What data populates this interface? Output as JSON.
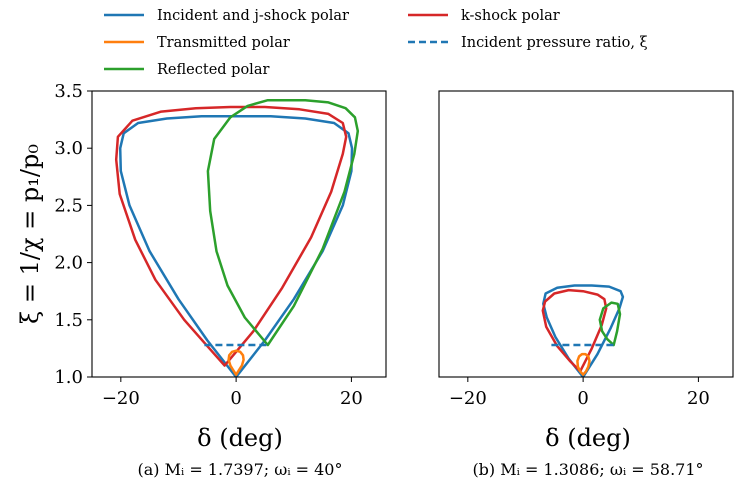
{
  "legend": [
    {
      "label": "Incident and j-shock polar",
      "color": "#1f77b4",
      "dash": false
    },
    {
      "label": "Transmitted polar",
      "color": "#ff7f0e",
      "dash": false
    },
    {
      "label": "Reflected polar",
      "color": "#2ca02c",
      "dash": false
    },
    {
      "label": "k-shock polar",
      "color": "#d62728",
      "dash": false
    },
    {
      "label": "Incident pressure ratio, ξ",
      "color": "#1f77b4",
      "dash": true
    }
  ],
  "chart_data": [
    {
      "type": "line",
      "caption": "(a) Mᵢ = 1.7397;    ωᵢ = 40°",
      "xlabel": "δ (deg)",
      "ylabel": "ξ = 1/χ = p₁/p₀",
      "xlim": [
        -25,
        26
      ],
      "ylim": [
        1.0,
        3.5
      ],
      "xticks": [
        -20,
        0,
        20
      ],
      "xtick_labels": [
        "−20",
        "0",
        "20"
      ],
      "yticks": [
        1.0,
        1.5,
        2.0,
        2.5,
        3.0,
        3.5
      ],
      "ytick_labels": [
        "1.0",
        "1.5",
        "2.0",
        "2.5",
        "3.0",
        "3.5"
      ],
      "series": [
        {
          "name": "Incident and j-shock polar",
          "color": "#1f77b4",
          "x": [
            0,
            5,
            10,
            15,
            18.5,
            20,
            20.1,
            19.5,
            17,
            12,
            6,
            0,
            -6,
            -12,
            -17,
            -19.5,
            -20.1,
            -20,
            -18.5,
            -15,
            -10,
            -5,
            0
          ],
          "y": [
            1.0,
            1.32,
            1.68,
            2.1,
            2.5,
            2.8,
            3.0,
            3.13,
            3.22,
            3.26,
            3.28,
            3.28,
            3.28,
            3.26,
            3.22,
            3.13,
            3.0,
            2.8,
            2.5,
            2.1,
            1.68,
            1.32,
            1.0
          ]
        },
        {
          "name": "k-shock polar",
          "color": "#d62728",
          "x": [
            -2,
            3,
            8,
            13,
            16.5,
            18.5,
            19.1,
            18.5,
            16,
            11,
            5,
            -1,
            -7,
            -13,
            -18,
            -20.5,
            -20.8,
            -20.2,
            -17.5,
            -14,
            -9,
            -5,
            -2
          ],
          "y": [
            1.1,
            1.4,
            1.78,
            2.22,
            2.62,
            2.95,
            3.1,
            3.22,
            3.3,
            3.34,
            3.36,
            3.36,
            3.35,
            3.32,
            3.24,
            3.1,
            2.9,
            2.6,
            2.2,
            1.85,
            1.5,
            1.27,
            1.1
          ]
        },
        {
          "name": "Reflected polar",
          "color": "#2ca02c",
          "x": [
            5.5,
            10,
            15,
            18.8,
            20.5,
            21.1,
            20.6,
            19,
            16,
            12,
            8,
            5.5,
            2,
            -1,
            -3.8,
            -4.9,
            -4.5,
            -3.4,
            -1.5,
            1.5,
            5.5
          ],
          "y": [
            1.28,
            1.62,
            2.12,
            2.62,
            2.95,
            3.15,
            3.27,
            3.35,
            3.4,
            3.42,
            3.42,
            3.42,
            3.37,
            3.27,
            3.08,
            2.8,
            2.45,
            2.1,
            1.8,
            1.52,
            1.28
          ]
        },
        {
          "name": "Transmitted polar",
          "color": "#ff7f0e",
          "x": [
            0,
            0.5,
            1.0,
            1.3,
            1.2,
            0.7,
            0,
            -0.7,
            -1.2,
            -1.3,
            -1.0,
            -0.5,
            0
          ],
          "y": [
            1.02,
            1.06,
            1.1,
            1.15,
            1.19,
            1.22,
            1.23,
            1.22,
            1.19,
            1.15,
            1.1,
            1.06,
            1.02
          ]
        },
        {
          "name": "Incident pressure ratio, ξ",
          "color": "#1f77b4",
          "dash": true,
          "x": [
            -5.5,
            5.5
          ],
          "y": [
            1.28,
            1.28
          ]
        }
      ]
    },
    {
      "type": "line",
      "caption": "(b) Mᵢ = 1.3086;    ωᵢ = 58.71°",
      "xlabel": "δ (deg)",
      "ylabel": "",
      "xlim": [
        -25,
        26
      ],
      "ylim": [
        1.0,
        3.5
      ],
      "xticks": [
        -20,
        0,
        20
      ],
      "xtick_labels": [
        "−20",
        "0",
        "20"
      ],
      "yticks": [],
      "ytick_labels": [],
      "series": [
        {
          "name": "Incident and j-shock polar",
          "color": "#1f77b4",
          "x": [
            0,
            2.5,
            4.8,
            6.3,
            6.9,
            6.5,
            4.5,
            1.5,
            -1.5,
            -4.5,
            -6.5,
            -6.9,
            -6.3,
            -4.8,
            -2.5,
            0
          ],
          "y": [
            1.0,
            1.2,
            1.43,
            1.6,
            1.7,
            1.75,
            1.79,
            1.8,
            1.8,
            1.78,
            1.73,
            1.64,
            1.52,
            1.35,
            1.16,
            1.0
          ]
        },
        {
          "name": "k-shock polar",
          "color": "#d62728",
          "x": [
            -0.5,
            1.5,
            3.2,
            4.0,
            3.7,
            2.5,
            0,
            -2.5,
            -5.0,
            -6.6,
            -7.0,
            -6.4,
            -4.5,
            -2.3,
            -0.5
          ],
          "y": [
            1.05,
            1.25,
            1.45,
            1.6,
            1.68,
            1.72,
            1.75,
            1.76,
            1.73,
            1.66,
            1.58,
            1.44,
            1.27,
            1.14,
            1.05
          ]
        },
        {
          "name": "Reflected polar",
          "color": "#2ca02c",
          "x": [
            5.3,
            5.9,
            6.4,
            6.0,
            4.9,
            3.5,
            2.9,
            3.3,
            4.2,
            5.3
          ],
          "y": [
            1.28,
            1.4,
            1.55,
            1.64,
            1.65,
            1.6,
            1.5,
            1.4,
            1.33,
            1.28
          ]
        },
        {
          "name": "Transmitted polar",
          "color": "#ff7f0e",
          "x": [
            0,
            0.5,
            0.9,
            1.1,
            0.9,
            0.4,
            -0.2,
            -0.7,
            -1.0,
            -0.9,
            -0.5,
            0
          ],
          "y": [
            1.02,
            1.05,
            1.09,
            1.14,
            1.18,
            1.2,
            1.2,
            1.18,
            1.14,
            1.09,
            1.05,
            1.02
          ]
        },
        {
          "name": "Incident pressure ratio, ξ",
          "color": "#1f77b4",
          "dash": true,
          "x": [
            -5.5,
            5.3
          ],
          "y": [
            1.28,
            1.28
          ]
        }
      ]
    }
  ]
}
